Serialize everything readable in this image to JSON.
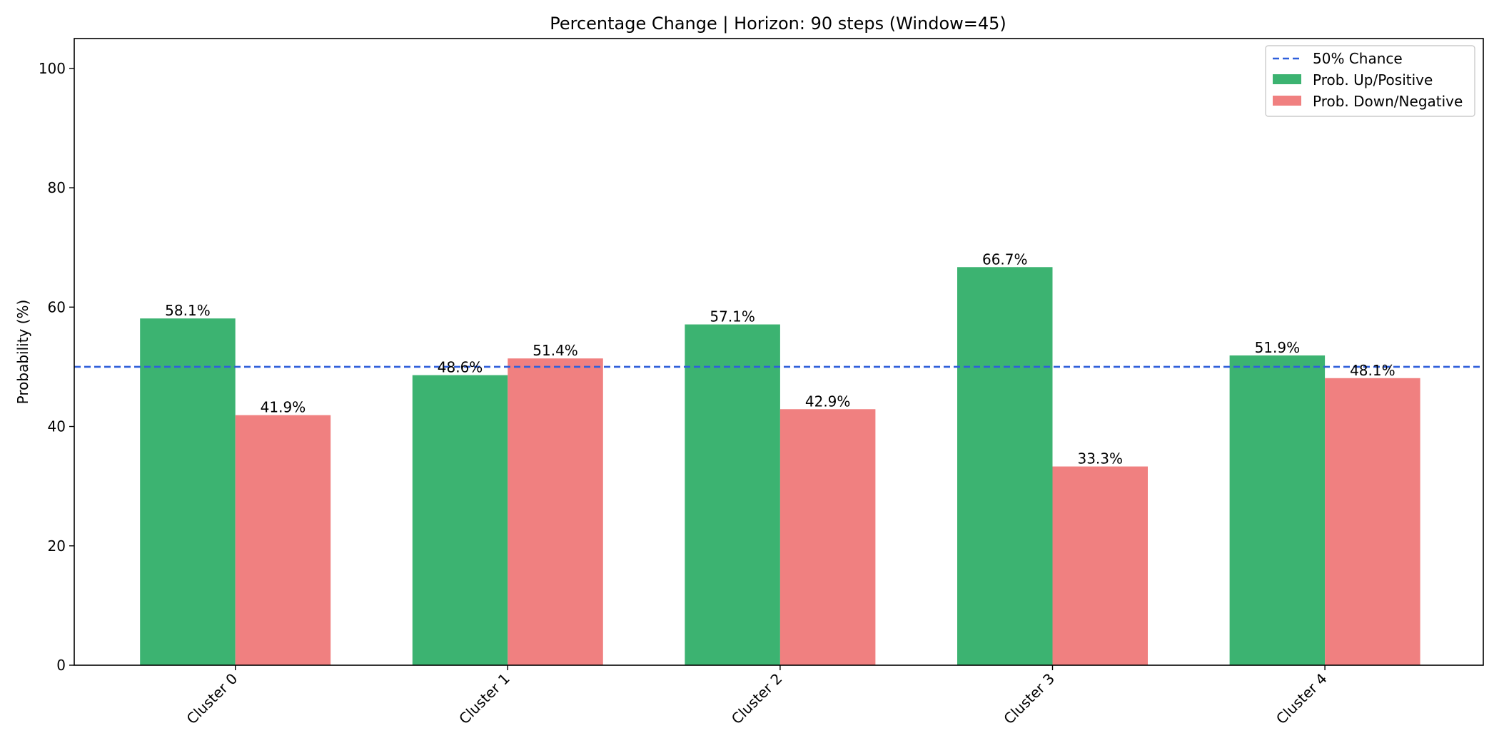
{
  "chart_data": {
    "type": "bar",
    "title": "Percentage Change | Horizon: 90 steps (Window=45)",
    "xlabel": "",
    "ylabel": "Probability (%)",
    "ylim": [
      0,
      105
    ],
    "yticks": [
      0,
      20,
      40,
      60,
      80,
      100
    ],
    "categories": [
      "Cluster 0",
      "Cluster 1",
      "Cluster 2",
      "Cluster 3",
      "Cluster 4"
    ],
    "series": [
      {
        "name": "Prob. Up/Positive",
        "color": "#3cb371",
        "values": [
          58.1,
          48.6,
          57.1,
          66.7,
          51.9
        ],
        "labels": [
          "58.1%",
          "48.6%",
          "57.1%",
          "66.7%",
          "51.9%"
        ]
      },
      {
        "name": "Prob. Down/Negative",
        "color": "#f08080",
        "values": [
          41.9,
          51.4,
          42.9,
          33.3,
          48.1
        ],
        "labels": [
          "41.9%",
          "51.4%",
          "42.9%",
          "33.3%",
          "48.1%"
        ]
      }
    ],
    "reference_line": {
      "name": "50% Chance",
      "value": 50,
      "color": "#2f5fdb",
      "style": "dashed"
    },
    "grid": false,
    "legend_position": "top-right",
    "xtick_rotation": 45
  }
}
